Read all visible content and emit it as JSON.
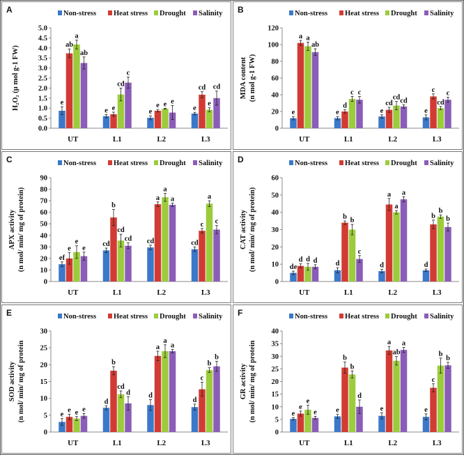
{
  "legend": [
    "Non-stress",
    "Heat stress",
    "Drought",
    "Salinity"
  ],
  "colors": [
    "#3b78c9",
    "#d23b33",
    "#9ccc3c",
    "#8b5db9"
  ],
  "chart_data": [
    {
      "panel": "A",
      "type": "bar",
      "categories": [
        "UT",
        "L1",
        "L2",
        "L3"
      ],
      "ylabel": [
        "H₂O₂ (μ mol g-1 FW)"
      ],
      "ylim": [
        0,
        5
      ],
      "ystep": 0.5,
      "ydecimals": 1,
      "series": [
        {
          "name": "Non-stress",
          "values": [
            0.87,
            0.6,
            0.52,
            0.73
          ],
          "errors": [
            0.2,
            0.08,
            0.1,
            0.06
          ],
          "letters": [
            "e",
            "e",
            "e",
            "e"
          ]
        },
        {
          "name": "Heat stress",
          "values": [
            3.73,
            0.7,
            0.87,
            1.67
          ],
          "errors": [
            0.22,
            0.1,
            0.06,
            0.15
          ],
          "letters": [
            "ab",
            "e",
            "e",
            "cd"
          ]
        },
        {
          "name": "Drought",
          "values": [
            4.17,
            1.68,
            0.97,
            0.92
          ],
          "errors": [
            0.22,
            0.32,
            0.02,
            0.1
          ],
          "letters": [
            "a",
            "cd",
            "e",
            "e"
          ]
        },
        {
          "name": "Salinity",
          "values": [
            3.25,
            2.27,
            0.78,
            1.5
          ],
          "errors": [
            0.3,
            0.28,
            0.35,
            0.35
          ],
          "letters": [
            "ab",
            "c",
            "e",
            "cd"
          ]
        }
      ]
    },
    {
      "panel": "B",
      "type": "bar",
      "categories": [
        "UT",
        "L1",
        "L2",
        "L3"
      ],
      "ylabel": [
        "MDA  content",
        "(n mol g-1 FW)"
      ],
      "ylim": [
        0,
        120
      ],
      "ystep": 20,
      "ydecimals": 0,
      "series": [
        {
          "name": "Non-stress",
          "values": [
            12,
            12,
            14,
            13
          ],
          "errors": [
            2,
            2,
            2,
            3
          ],
          "letters": [
            "e",
            "e",
            "e",
            "e"
          ]
        },
        {
          "name": "Heat stress",
          "values": [
            102,
            20,
            22,
            38
          ],
          "errors": [
            3,
            2,
            3,
            3
          ],
          "letters": [
            "a",
            "d",
            "cd",
            "c"
          ]
        },
        {
          "name": "Drought",
          "values": [
            98,
            35,
            27,
            24
          ],
          "errors": [
            5,
            3,
            5,
            2
          ],
          "letters": [
            "a",
            "c",
            "cd",
            "cd"
          ]
        },
        {
          "name": "Salinity",
          "values": [
            91,
            34,
            26,
            34
          ],
          "errors": [
            4,
            4,
            2,
            3
          ],
          "letters": [
            "ab",
            "c",
            "cd",
            "c"
          ]
        }
      ]
    },
    {
      "panel": "C",
      "type": "bar",
      "categories": [
        "UT",
        "L1",
        "L2",
        "L3"
      ],
      "ylabel": [
        "APX activity",
        "(n mol/ min/ mg of protein)"
      ],
      "ylim": [
        0,
        90
      ],
      "ystep": 10,
      "ydecimals": 0,
      "series": [
        {
          "name": "Non-stress",
          "values": [
            15,
            27,
            29.5,
            28
          ],
          "errors": [
            2,
            2,
            2,
            2
          ],
          "letters": [
            "ef",
            "cd",
            "cd",
            "cd"
          ]
        },
        {
          "name": "Heat stress",
          "values": [
            20,
            55.5,
            67,
            44
          ],
          "errors": [
            5,
            7,
            2,
            2
          ],
          "letters": [
            "e",
            "b",
            "a",
            "c"
          ]
        },
        {
          "name": "Drought",
          "values": [
            25.5,
            35.5,
            73,
            67.5
          ],
          "errors": [
            5.5,
            5.5,
            3.5,
            2.5
          ],
          "letters": [
            "e",
            "cd",
            "a",
            "a"
          ]
        },
        {
          "name": "Salinity",
          "values": [
            22,
            31,
            66.5,
            45
          ],
          "errors": [
            3.5,
            2.5,
            1.5,
            3.5
          ],
          "letters": [
            "e",
            "cd",
            "a",
            "c"
          ]
        }
      ]
    },
    {
      "panel": "D",
      "type": "bar",
      "categories": [
        "UT",
        "L1",
        "L2",
        "L3"
      ],
      "ylabel": [
        "CAT activity",
        "(n mol/ min/ mg of protein)"
      ],
      "ylim": [
        0,
        60
      ],
      "ystep": 10,
      "ydecimals": 0,
      "series": [
        {
          "name": "Non-stress",
          "values": [
            5,
            6.5,
            6,
            6.5
          ],
          "errors": [
            1,
            1.5,
            1,
            0.7
          ],
          "letters": [
            "de",
            "d",
            "d",
            "d"
          ]
        },
        {
          "name": "Heat stress",
          "values": [
            9,
            34,
            44.5,
            33
          ],
          "errors": [
            1.2,
            1,
            3.5,
            2.5
          ],
          "letters": [
            "d",
            "b",
            "a",
            "b"
          ]
        },
        {
          "name": "Drought",
          "values": [
            8.5,
            30,
            40,
            37.5
          ],
          "errors": [
            2,
            3,
            1,
            1
          ],
          "letters": [
            "d",
            "b",
            "a",
            "b"
          ]
        },
        {
          "name": "Salinity",
          "values": [
            8.5,
            13,
            47.5,
            31.5
          ],
          "errors": [
            1.2,
            2,
            1.5,
            2.3
          ],
          "letters": [
            "d",
            "c",
            "a",
            "b"
          ]
        }
      ]
    },
    {
      "panel": "E",
      "type": "bar",
      "categories": [
        "UT",
        "L1",
        "L2",
        "L3"
      ],
      "ylabel": [
        "SOD  activity",
        "(n mol/ min/ mg of protein"
      ],
      "ylim": [
        0,
        30
      ],
      "ystep": 5,
      "ydecimals": 0,
      "series": [
        {
          "name": "Non-stress",
          "values": [
            3,
            7.2,
            8,
            7.4
          ],
          "errors": [
            1,
            0.6,
            1.6,
            0.9
          ],
          "letters": [
            "e",
            "d",
            "d",
            "d"
          ]
        },
        {
          "name": "Heat stress",
          "values": [
            4.5,
            18.2,
            22.6,
            12.7
          ],
          "errors": [
            0.8,
            1.2,
            1.4,
            2.1
          ],
          "letters": [
            "e",
            "b",
            "a",
            "c"
          ]
        },
        {
          "name": "Drought",
          "values": [
            4,
            11.2,
            24,
            18.4
          ],
          "errors": [
            0.6,
            1,
            1.9,
            0.7
          ],
          "letters": [
            "e",
            "cd",
            "a",
            "b"
          ]
        },
        {
          "name": "Salinity",
          "values": [
            4.8,
            8.5,
            24,
            19.5
          ],
          "errors": [
            0.7,
            2,
            0.5,
            1.5
          ],
          "letters": [
            "e",
            "d",
            "a",
            "b"
          ]
        }
      ]
    },
    {
      "panel": "F",
      "type": "bar",
      "categories": [
        "UT",
        "L1",
        "L2",
        "L3"
      ],
      "ylabel": [
        "GR  activity",
        "(n mol/ min/ mg of protein"
      ],
      "ylim": [
        0,
        40
      ],
      "ystep": 5,
      "ydecimals": 0,
      "series": [
        {
          "name": "Non-stress",
          "values": [
            5.2,
            6.2,
            6.4,
            6
          ],
          "errors": [
            0.5,
            0.8,
            1.2,
            1.2
          ],
          "letters": [
            "e",
            "e",
            "e",
            "e"
          ]
        },
        {
          "name": "Heat stress",
          "values": [
            7.3,
            25.5,
            32.3,
            17.5
          ],
          "errors": [
            1,
            2.2,
            1.6,
            1.6
          ],
          "letters": [
            "e",
            "b",
            "a",
            "c"
          ]
        },
        {
          "name": "Drought",
          "values": [
            8.8,
            22.8,
            28.2,
            26.3
          ],
          "errors": [
            1.8,
            1.4,
            1.7,
            3
          ],
          "letters": [
            "e",
            "b",
            "ab",
            "b"
          ]
        },
        {
          "name": "Salinity",
          "values": [
            5.6,
            10,
            32.5,
            26.4
          ],
          "errors": [
            0.6,
            2.7,
            1,
            1.2
          ],
          "letters": [
            "e",
            "d",
            "a",
            "b"
          ]
        }
      ]
    }
  ]
}
